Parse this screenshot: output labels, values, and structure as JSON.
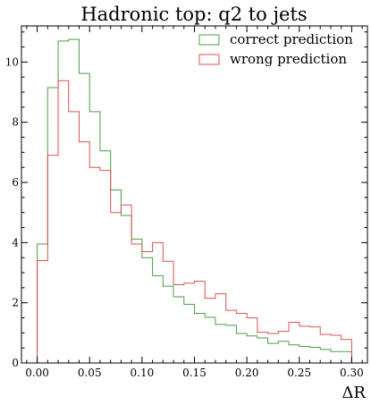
{
  "chart_data": {
    "type": "line",
    "title": "Hadronic top: q2 to jets",
    "xlabel": "ΔR",
    "ylabel": "",
    "xlim": [
      -0.015,
      0.315
    ],
    "ylim": [
      0,
      11.2
    ],
    "bin_edges": [
      0.0,
      0.01,
      0.02,
      0.03,
      0.04,
      0.05,
      0.06,
      0.07,
      0.08,
      0.09,
      0.1,
      0.11,
      0.12,
      0.13,
      0.14,
      0.15,
      0.16,
      0.17,
      0.18,
      0.19,
      0.2,
      0.21,
      0.22,
      0.23,
      0.24,
      0.25,
      0.26,
      0.27,
      0.28,
      0.29,
      0.3
    ],
    "x_ticks": [
      0.0,
      0.05,
      0.1,
      0.15,
      0.2,
      0.25,
      0.3
    ],
    "x_tick_labels": [
      "0.00",
      "0.05",
      "0.10",
      "0.15",
      "0.20",
      "0.25",
      "0.30"
    ],
    "y_ticks": [
      0,
      2,
      4,
      6,
      8,
      10
    ],
    "y_tick_labels": [
      "0",
      "2",
      "4",
      "6",
      "8",
      "10"
    ],
    "grid": false,
    "legend_position": "top-right",
    "series": [
      {
        "name": "correct prediction",
        "color": "#4a9e4a",
        "values": [
          3.95,
          9.15,
          10.7,
          10.75,
          9.62,
          8.35,
          7.05,
          5.75,
          4.9,
          4.12,
          3.5,
          2.9,
          2.55,
          2.2,
          1.95,
          1.65,
          1.52,
          1.28,
          1.25,
          0.98,
          0.9,
          0.83,
          0.65,
          0.72,
          0.6,
          0.55,
          0.52,
          0.45,
          0.38,
          0.38
        ]
      },
      {
        "name": "wrong prediction",
        "color": "#d9534f",
        "values": [
          3.4,
          6.9,
          9.38,
          8.35,
          7.35,
          6.5,
          6.4,
          5.0,
          5.25,
          3.95,
          3.7,
          4.0,
          3.38,
          2.6,
          2.65,
          2.72,
          2.15,
          2.3,
          1.75,
          1.65,
          1.5,
          1.02,
          0.98,
          1.05,
          1.35,
          1.22,
          1.2,
          0.95,
          0.92,
          0.78
        ]
      }
    ]
  }
}
